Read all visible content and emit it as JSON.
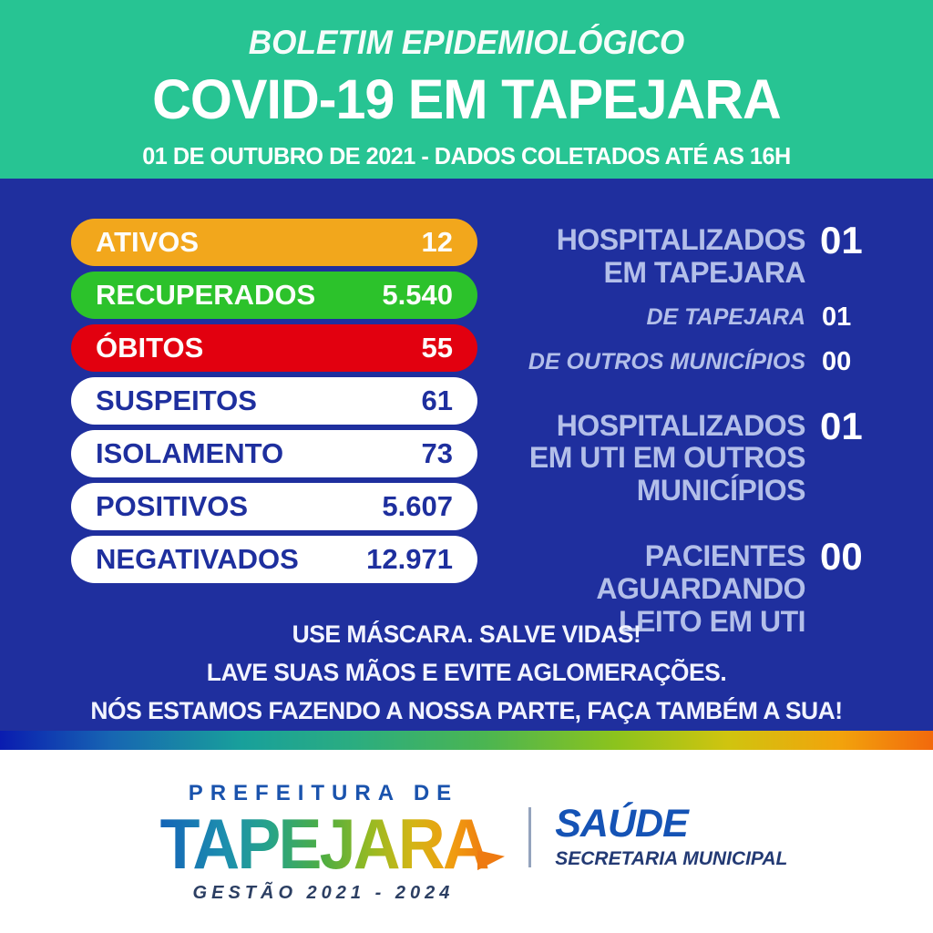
{
  "header": {
    "title_line1": "BOLETIM EPIDEMIOLÓGICO",
    "title_line2": "COVID-19 EM TAPEJARA",
    "subtitle": "01 DE OUTUBRO DE 2021 - DADOS COLETADOS ATÉ AS 16H"
  },
  "stats_pills": [
    {
      "label": "ATIVOS",
      "value": "12",
      "bg": "#f2a71c",
      "fg": "#ffffff"
    },
    {
      "label": "RECUPERADOS",
      "value": "5.540",
      "bg": "#2cc22b",
      "fg": "#ffffff"
    },
    {
      "label": "ÓBITOS",
      "value": "55",
      "bg": "#e2000f",
      "fg": "#ffffff"
    },
    {
      "label": "SUSPEITOS",
      "value": "61",
      "bg": "#ffffff",
      "fg": "#1e2f9e"
    },
    {
      "label": "ISOLAMENTO",
      "value": "73",
      "bg": "#ffffff",
      "fg": "#1e2f9e"
    },
    {
      "label": "POSITIVOS",
      "value": "5.607",
      "bg": "#ffffff",
      "fg": "#1e2f9e"
    },
    {
      "label": "NEGATIVADOS",
      "value": "12.971",
      "bg": "#ffffff",
      "fg": "#1e2f9e"
    }
  ],
  "hospital_sections": [
    {
      "lines": [
        "HOSPITALIZADOS",
        "EM TAPEJARA"
      ],
      "value": "01",
      "subs": [
        {
          "label": "DE TAPEJARA",
          "value": "01"
        },
        {
          "label": "DE OUTROS MUNICÍPIOS",
          "value": "00"
        }
      ]
    },
    {
      "lines": [
        "HOSPITALIZADOS",
        "EM UTI EM OUTROS",
        "MUNICÍPIOS"
      ],
      "value": "01"
    },
    {
      "lines": [
        "PACIENTES",
        "AGUARDANDO",
        "LEITO EM UTI"
      ],
      "value": "00"
    }
  ],
  "messages": [
    "USE MÁSCARA. SALVE VIDAS!",
    "LAVE SUAS MÃOS E EVITE AGLOMERAÇÕES.",
    "NÓS ESTAMOS FAZENDO A NOSSA PARTE, FAÇA TAMBÉM A SUA!"
  ],
  "footer": {
    "prefeitura": "PREFEITURA DE",
    "city": "TAPEJARA",
    "gestao": "GESTÃO 2021 - 2024",
    "dept": "SAÚDE",
    "dept_sub": "SECRETARIA MUNICIPAL"
  },
  "colors": {
    "header_bg": "#27c493",
    "body_bg": "#1f2f9e",
    "pill_orange": "#f2a71c",
    "pill_green": "#2cc22b",
    "pill_red": "#e2000f",
    "pill_text_blue": "#1e2f9e",
    "label_lavender": "#b3bfe9",
    "footer_blue": "#1a53ad",
    "stripe_gradient": [
      "#0a1cb0",
      "#18a09b",
      "#4bb551",
      "#d0c40f",
      "#f2690c"
    ]
  }
}
